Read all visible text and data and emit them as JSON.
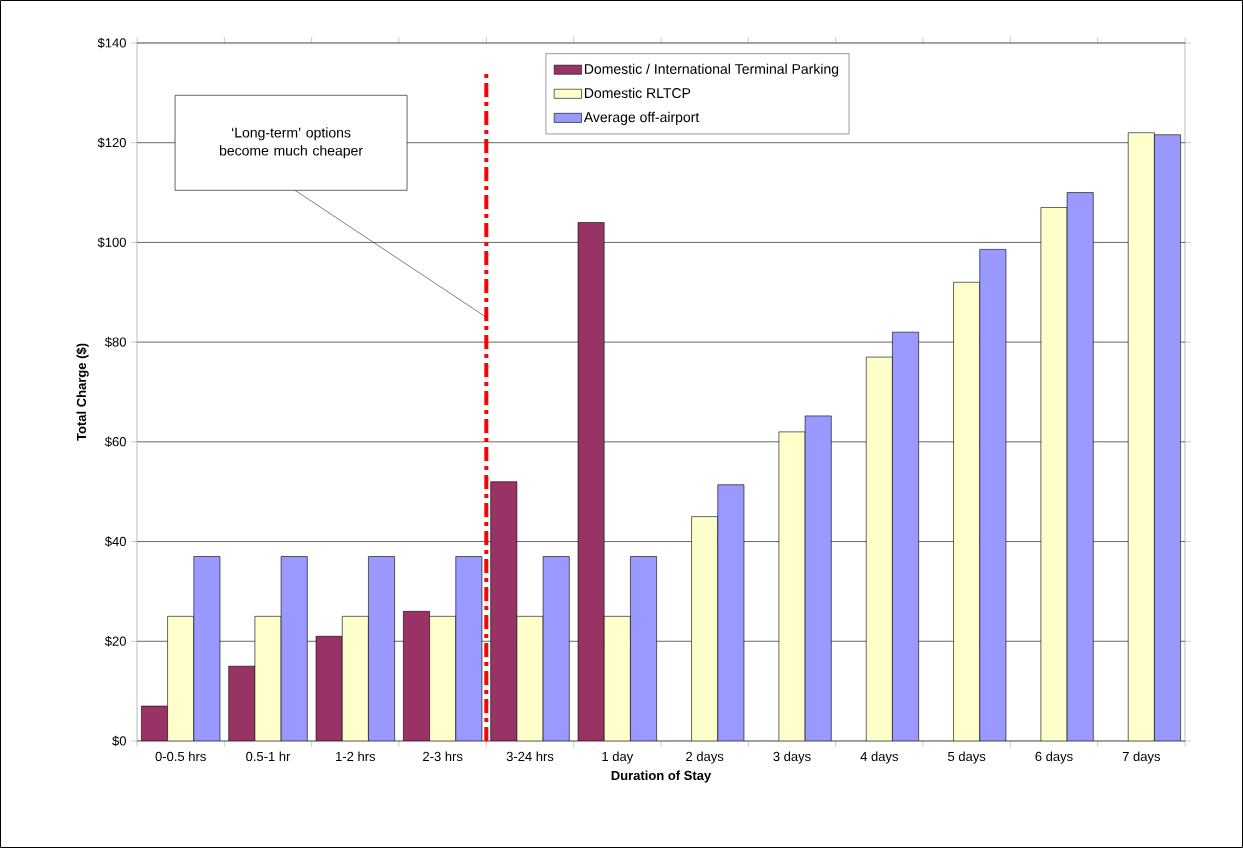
{
  "chart_data": {
    "type": "bar",
    "xlabel": "Duration of Stay",
    "ylabel": "Total Charge ($)",
    "categories": [
      "0-0.5 hrs",
      "0.5-1 hr",
      "1-2 hrs",
      "2-3 hrs",
      "3-24 hrs",
      "1 day",
      "2 days",
      "3 days",
      "4 days",
      "5 days",
      "6 days",
      "7 days"
    ],
    "series": [
      {
        "name": "Domestic / International Terminal Parking",
        "color": "#993366",
        "values": [
          7,
          15,
          21,
          26,
          52,
          104,
          null,
          null,
          null,
          null,
          null,
          null
        ]
      },
      {
        "name": "Domestic RLTCP",
        "color": "#ffffcc",
        "values": [
          25,
          25,
          25,
          25,
          25,
          25,
          45,
          62,
          77,
          92,
          107,
          122
        ]
      },
      {
        "name": "Average off-airport",
        "color": "#9999ff",
        "values": [
          37,
          37,
          37,
          37,
          37,
          37,
          51.4,
          65.2,
          82,
          98.6,
          110,
          121.6
        ]
      }
    ],
    "ylim": [
      0,
      140
    ],
    "yticks": [
      {
        "value": 0,
        "label": "$0"
      },
      {
        "value": 20,
        "label": "$20"
      },
      {
        "value": 40,
        "label": "$40"
      },
      {
        "value": 60,
        "label": "$60"
      },
      {
        "value": 80,
        "label": "$80"
      },
      {
        "value": 100,
        "label": "$100"
      },
      {
        "value": 120,
        "label": "$120"
      },
      {
        "value": 140,
        "label": "$140"
      }
    ],
    "grid": "y",
    "legend": "top",
    "annotations": [
      "‘Long-term’ options become much cheaper"
    ]
  }
}
